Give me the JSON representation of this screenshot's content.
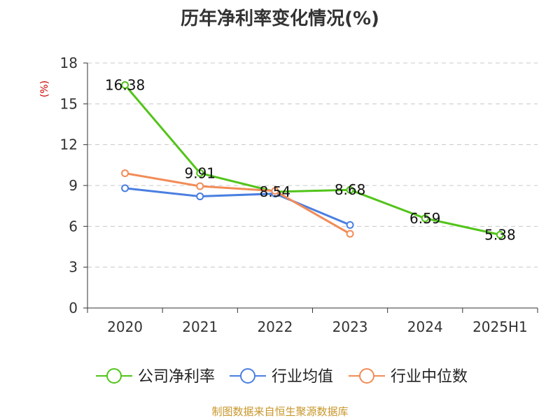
{
  "title": "历年净利率变化情况(%)",
  "unit_label": "(%)",
  "source": "制图数据来自恒生聚源数据库",
  "chart_data": {
    "type": "line",
    "title": "历年净利率变化情况(%)",
    "ylabel": "(%)",
    "xlabel": "",
    "categories": [
      "2020",
      "2021",
      "2022",
      "2023",
      "2024",
      "2025H1"
    ],
    "ylim": [
      0,
      18
    ],
    "yticks": [
      0,
      3,
      6,
      9,
      12,
      15,
      18
    ],
    "grid": true,
    "legend_position": "bottom",
    "series": [
      {
        "name": "公司净利率",
        "color": "#52c41a",
        "labeled": true,
        "values": [
          16.38,
          9.91,
          8.54,
          8.68,
          6.59,
          5.38
        ],
        "labels": [
          "16.38",
          "9.91",
          "8.54",
          "8.68",
          "6.59",
          "5.38"
        ]
      },
      {
        "name": "行业均值",
        "color": "#4a7fe0",
        "labeled": false,
        "values": [
          8.8,
          8.2,
          8.4,
          6.1,
          null,
          null
        ]
      },
      {
        "name": "行业中位数",
        "color": "#f28c57",
        "labeled": false,
        "values": [
          9.9,
          8.95,
          8.6,
          5.45,
          null,
          null
        ]
      }
    ]
  }
}
